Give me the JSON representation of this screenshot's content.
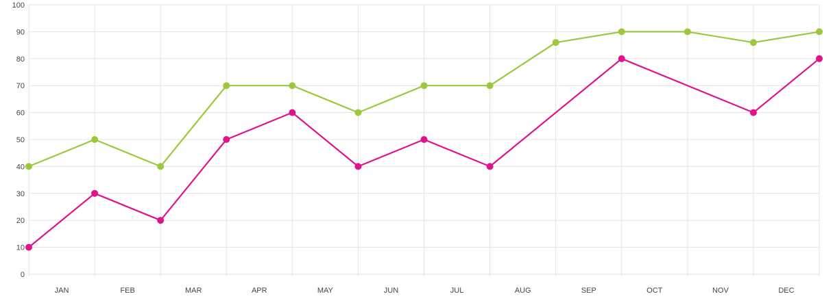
{
  "chart_data": {
    "type": "line",
    "categories": [
      "JAN",
      "FEB",
      "MAR",
      "APR",
      "MAY",
      "JUN",
      "JUL",
      "AUG",
      "SEP",
      "OCT",
      "NOV",
      "DEC"
    ],
    "x": [
      0,
      1,
      2,
      3,
      4,
      5,
      6,
      7,
      8,
      9,
      10,
      11,
      12
    ],
    "ylim": [
      0,
      100
    ],
    "yticks": [
      0,
      10,
      20,
      30,
      40,
      50,
      60,
      70,
      80,
      90,
      100
    ],
    "grid": true,
    "series": [
      {
        "color": "#9bc83c",
        "values": [
          40,
          50,
          40,
          70,
          70,
          60,
          70,
          70,
          86,
          90,
          90,
          86,
          90
        ]
      },
      {
        "color": "#e0138c",
        "values": [
          10,
          30,
          20,
          50,
          60,
          40,
          50,
          40,
          null,
          80,
          null,
          60,
          80
        ]
      }
    ]
  }
}
